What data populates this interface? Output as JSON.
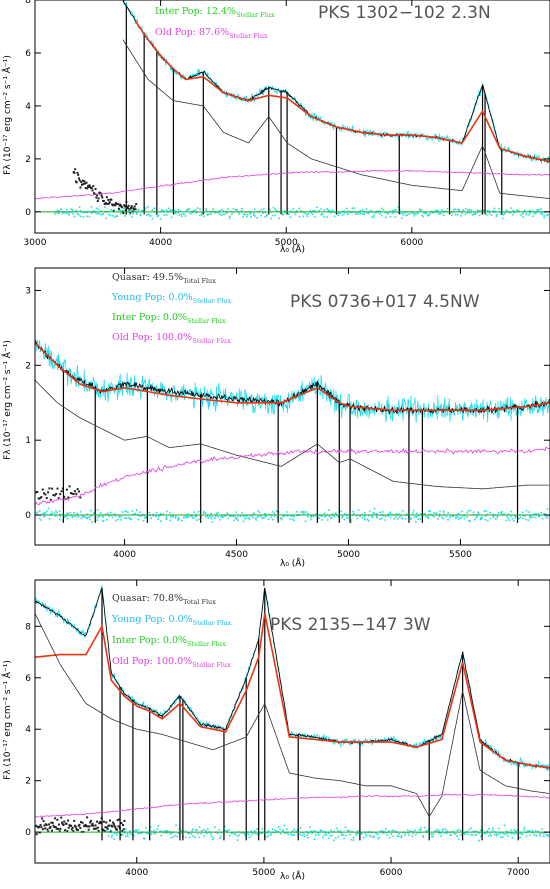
{
  "chart_data": [
    {
      "type": "line",
      "title": "PKS 1302−102 2.3N",
      "xlabel": "λ₀ (Å)",
      "ylabel": "Fλ (10⁻¹⁷ erg cm⁻² s⁻¹ Å⁻¹)",
      "xlim": [
        3000,
        7100
      ],
      "ylim": [
        -0.8,
        8
      ],
      "xticks": [
        3000,
        4000,
        5000,
        6000
      ],
      "yticks": [
        0,
        2,
        4,
        6,
        8
      ],
      "legend": [
        {
          "name": "Inter Pop:",
          "value": "12.4%",
          "sub": "Stellar Flux",
          "color": "#22cc22"
        },
        {
          "name": "Old Pop:",
          "value": "87.6%",
          "sub": "Stellar Flux",
          "color": "#e040e0"
        }
      ],
      "continuum_start": 3150,
      "emission_lines": [
        3727,
        3869,
        3970,
        4102,
        4340,
        4861,
        4959,
        5007,
        5400,
        5900,
        6300,
        6563,
        6583,
        6716
      ],
      "series": [
        {
          "name": "observed",
          "color": "#000000",
          "x": [
            3700,
            3800,
            3900,
            4000,
            4100,
            4200,
            4340,
            4500,
            4700,
            4861,
            5007,
            5200,
            5400,
            5600,
            5800,
            6000,
            6200,
            6400,
            6563,
            6700,
            6900,
            7100
          ],
          "y": [
            8.0,
            7.2,
            6.5,
            5.9,
            5.4,
            5.0,
            5.3,
            4.5,
            4.2,
            4.7,
            4.5,
            3.6,
            3.2,
            3.0,
            2.9,
            2.9,
            2.8,
            2.6,
            4.8,
            2.4,
            2.1,
            1.9
          ]
        },
        {
          "name": "model",
          "color": "#ee3311",
          "x": [
            3800,
            3900,
            4000,
            4100,
            4200,
            4340,
            4500,
            4700,
            4861,
            5007,
            5200,
            5400,
            5600,
            5800,
            6000,
            6200,
            6400,
            6563,
            6700,
            6900,
            7100
          ],
          "y": [
            7.2,
            6.5,
            5.9,
            5.4,
            5.0,
            5.1,
            4.5,
            4.2,
            4.4,
            4.3,
            3.6,
            3.2,
            3.0,
            2.9,
            2.9,
            2.8,
            2.6,
            3.8,
            2.4,
            2.1,
            1.9
          ]
        },
        {
          "name": "agn",
          "color": "#333333",
          "x": [
            3700,
            3900,
            4100,
            4340,
            4500,
            4700,
            4861,
            5007,
            5200,
            5400,
            5600,
            5800,
            6000,
            6200,
            6400,
            6563,
            6700,
            6900,
            7100
          ],
          "y": [
            6.5,
            5.0,
            4.2,
            4.0,
            3.0,
            2.6,
            3.6,
            2.6,
            2.0,
            1.7,
            1.4,
            1.2,
            1.0,
            0.9,
            0.8,
            2.5,
            0.7,
            0.6,
            0.5
          ]
        },
        {
          "name": "old",
          "color": "#e040e0",
          "x": [
            3000,
            3300,
            3600,
            3900,
            4200,
            4500,
            4800,
            5100,
            5400,
            5700,
            6000,
            6300,
            6600,
            6900,
            7100
          ],
          "y": [
            0.5,
            0.6,
            0.7,
            0.9,
            1.1,
            1.3,
            1.4,
            1.5,
            1.5,
            1.55,
            1.55,
            1.5,
            1.45,
            1.4,
            1.4
          ]
        }
      ]
    },
    {
      "type": "line",
      "title": "PKS 0736+017 4.5NW",
      "xlabel": "λ₀ (Å)",
      "ylabel": "Fλ (10⁻¹⁷ erg cm⁻² s⁻¹ Å⁻¹)",
      "xlim": [
        3600,
        5900
      ],
      "ylim": [
        -0.4,
        3.3
      ],
      "xticks": [
        4000,
        4500,
        5000,
        5500
      ],
      "yticks": [
        0,
        1,
        2,
        3
      ],
      "legend": [
        {
          "name": "Quasar:",
          "value": "49.5%",
          "sub": "Total Flux",
          "color": "#333333"
        },
        {
          "name": "Young Pop:",
          "value": "0.0%",
          "sub": "Stellar Flux",
          "color": "#22bbee"
        },
        {
          "name": "Inter Pop:",
          "value": "0.0%",
          "sub": "Stellar Flux",
          "color": "#22cc22"
        },
        {
          "name": "Old Pop:",
          "value": "100.0%",
          "sub": "Stellar Flux",
          "color": "#e040e0"
        }
      ],
      "continuum_start": 3600,
      "emission_lines": [
        3727,
        3869,
        4102,
        4340,
        4686,
        4861,
        4959,
        5007,
        5270,
        5330,
        5755
      ],
      "series": [
        {
          "name": "observed",
          "color": "#000000",
          "x": [
            3600,
            3700,
            3800,
            3900,
            4000,
            4100,
            4200,
            4340,
            4500,
            4700,
            4861,
            4959,
            5007,
            5200,
            5400,
            5600,
            5800,
            5900
          ],
          "y": [
            2.3,
            2.0,
            1.8,
            1.65,
            1.75,
            1.7,
            1.65,
            1.6,
            1.55,
            1.5,
            1.75,
            1.5,
            1.45,
            1.4,
            1.4,
            1.4,
            1.45,
            1.5
          ]
        },
        {
          "name": "model",
          "color": "#ee3311",
          "x": [
            3600,
            3700,
            3800,
            3900,
            4000,
            4100,
            4200,
            4340,
            4500,
            4700,
            4861,
            4959,
            5007,
            5200,
            5400,
            5600,
            5800,
            5900
          ],
          "y": [
            2.3,
            2.0,
            1.75,
            1.65,
            1.7,
            1.65,
            1.6,
            1.55,
            1.5,
            1.5,
            1.7,
            1.5,
            1.45,
            1.4,
            1.4,
            1.4,
            1.45,
            1.5
          ]
        },
        {
          "name": "agn",
          "color": "#333333",
          "x": [
            3600,
            3700,
            3800,
            3900,
            4000,
            4100,
            4200,
            4340,
            4500,
            4700,
            4861,
            4959,
            5007,
            5200,
            5400,
            5600,
            5800,
            5900
          ],
          "y": [
            1.8,
            1.5,
            1.3,
            1.15,
            1.0,
            1.05,
            0.9,
            0.95,
            0.8,
            0.65,
            0.95,
            0.7,
            0.75,
            0.45,
            0.38,
            0.35,
            0.4,
            0.4
          ]
        },
        {
          "name": "old",
          "color": "#e040e0",
          "x": [
            3600,
            3700,
            3800,
            3900,
            4000,
            4200,
            4400,
            4600,
            4800,
            5000,
            5200,
            5400,
            5600,
            5800,
            5900
          ],
          "y": [
            0.15,
            0.2,
            0.25,
            0.4,
            0.5,
            0.65,
            0.75,
            0.8,
            0.85,
            0.85,
            0.85,
            0.85,
            0.85,
            0.85,
            0.9
          ]
        }
      ]
    },
    {
      "type": "line",
      "title": "PKS 2135−147 3W",
      "xlabel": "λ₀ (Å)",
      "ylabel": "Fλ (10⁻¹⁷ erg cm⁻² s⁻¹ Å⁻¹)",
      "xlim": [
        3200,
        7250
      ],
      "ylim": [
        -1.2,
        9.8
      ],
      "xticks": [
        4000,
        5000,
        6000,
        7000
      ],
      "yticks": [
        0,
        2,
        4,
        6,
        8
      ],
      "legend": [
        {
          "name": "Quasar:",
          "value": "70.8%",
          "sub": "Total Flux",
          "color": "#333333"
        },
        {
          "name": "Young Pop:",
          "value": "0.0%",
          "sub": "Stellar Flux",
          "color": "#22bbee"
        },
        {
          "name": "Inter Pop:",
          "value": "0.0%",
          "sub": "Stellar Flux",
          "color": "#22cc22"
        },
        {
          "name": "Old Pop:",
          "value": "100.0%",
          "sub": "Stellar Flux",
          "color": "#e040e0"
        }
      ],
      "continuum_start": 3750,
      "emission_lines": [
        3727,
        3869,
        3970,
        4102,
        4340,
        4363,
        4686,
        4861,
        4959,
        5007,
        5270,
        5755,
        6300,
        6563,
        6716,
        7000
      ],
      "series": [
        {
          "name": "observed",
          "color": "#000000",
          "x": [
            3200,
            3400,
            3600,
            3727,
            3800,
            3900,
            4000,
            4102,
            4200,
            4340,
            4500,
            4700,
            4861,
            4959,
            5007,
            5200,
            5400,
            5600,
            5800,
            6000,
            6200,
            6400,
            6563,
            6700,
            6900,
            7100,
            7250
          ],
          "y": [
            9.0,
            8.4,
            7.6,
            9.5,
            6.2,
            5.4,
            5.0,
            4.8,
            4.5,
            5.3,
            4.2,
            4.0,
            6.0,
            7.5,
            9.5,
            3.8,
            3.7,
            3.5,
            3.5,
            3.6,
            3.3,
            3.8,
            7.0,
            3.6,
            2.8,
            2.6,
            2.5
          ]
        },
        {
          "name": "model",
          "color": "#ee3311",
          "x": [
            3200,
            3400,
            3600,
            3727,
            3800,
            3900,
            4000,
            4102,
            4200,
            4340,
            4500,
            4700,
            4861,
            4959,
            5007,
            5200,
            5400,
            5600,
            5800,
            6000,
            6200,
            6400,
            6563,
            6700,
            6900,
            7100,
            7250
          ],
          "y": [
            6.8,
            6.9,
            6.9,
            8.0,
            5.9,
            5.3,
            4.9,
            4.7,
            4.4,
            5.0,
            4.1,
            3.9,
            5.5,
            6.8,
            8.5,
            3.7,
            3.6,
            3.5,
            3.5,
            3.5,
            3.3,
            3.6,
            6.6,
            3.5,
            2.8,
            2.6,
            2.5
          ]
        },
        {
          "name": "agn",
          "color": "#333333",
          "x": [
            3200,
            3400,
            3600,
            3800,
            4000,
            4200,
            4400,
            4600,
            4861,
            5007,
            5200,
            5400,
            5600,
            5800,
            6000,
            6200,
            6300,
            6400,
            6563,
            6700,
            6900,
            7100,
            7250
          ],
          "y": [
            8.5,
            6.5,
            5.0,
            4.4,
            4.0,
            3.8,
            3.5,
            3.2,
            3.7,
            5.0,
            2.3,
            2.1,
            2.0,
            1.8,
            1.8,
            1.5,
            0.6,
            1.4,
            5.5,
            2.4,
            1.8,
            1.6,
            1.5
          ]
        },
        {
          "name": "old",
          "color": "#e040e0",
          "x": [
            3200,
            3400,
            3600,
            3800,
            4000,
            4200,
            4400,
            4600,
            4800,
            5000,
            5200,
            5400,
            5600,
            5800,
            6000,
            6200,
            6400,
            6600,
            6800,
            7000,
            7250
          ],
          "y": [
            0.6,
            0.65,
            0.7,
            0.8,
            0.9,
            1.0,
            1.1,
            1.15,
            1.2,
            1.25,
            1.3,
            1.35,
            1.35,
            1.4,
            1.4,
            1.4,
            1.45,
            1.45,
            1.45,
            1.4,
            1.35
          ]
        }
      ]
    }
  ]
}
